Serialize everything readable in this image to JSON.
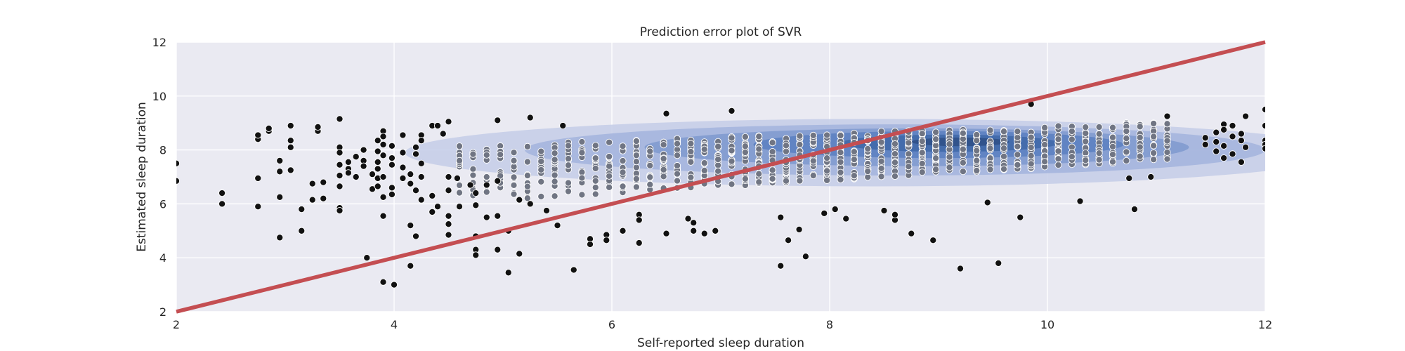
{
  "chart_data": {
    "type": "scatter",
    "title": "Prediction error plot of SVR",
    "xlabel": "Self-reported sleep duration",
    "ylabel": "Estimated sleep duration",
    "xlim": [
      2,
      12
    ],
    "ylim": [
      2,
      12
    ],
    "xticks": [
      2,
      4,
      6,
      8,
      10,
      12
    ],
    "yticks": [
      2,
      4,
      6,
      8,
      10,
      12
    ],
    "grid": true,
    "background_color": "#eaeaf2",
    "reference_line": {
      "from": [
        2,
        2
      ],
      "to": [
        12,
        12
      ],
      "color": "#c44e52"
    },
    "density_colors": [
      "#c4cde8",
      "#a3b4dd",
      "#7f99cf",
      "#5a7fc1",
      "#3f67a8",
      "#2e4f86"
    ],
    "density_contours": [
      {
        "cx": 8.4,
        "cy": 7.9,
        "rx": 4.3,
        "ry": 1.25
      },
      {
        "cx": 8.6,
        "cy": 8.0,
        "rx": 3.4,
        "ry": 0.95
      },
      {
        "cx": 8.8,
        "cy": 8.1,
        "rx": 2.5,
        "ry": 0.7
      },
      {
        "cx": 9.0,
        "cy": 8.2,
        "rx": 1.7,
        "ry": 0.5
      },
      {
        "cx": 9.1,
        "cy": 8.25,
        "rx": 1.0,
        "ry": 0.32
      },
      {
        "cx": 9.2,
        "cy": 8.3,
        "rx": 0.45,
        "ry": 0.16
      }
    ],
    "dense_point_color": "#707583",
    "outlier_point_color": "#111111",
    "outlier_points": [
      [
        2.0,
        7.5
      ],
      [
        2.0,
        6.85
      ],
      [
        2.42,
        6.4
      ],
      [
        2.42,
        6.0
      ],
      [
        2.75,
        8.4
      ],
      [
        2.75,
        8.55
      ],
      [
        2.75,
        6.95
      ],
      [
        2.75,
        5.9
      ],
      [
        2.85,
        8.7
      ],
      [
        2.85,
        8.8
      ],
      [
        2.95,
        7.6
      ],
      [
        2.95,
        7.2
      ],
      [
        2.95,
        6.25
      ],
      [
        2.95,
        4.75
      ],
      [
        3.05,
        8.9
      ],
      [
        3.05,
        8.35
      ],
      [
        3.05,
        8.1
      ],
      [
        3.05,
        7.25
      ],
      [
        3.15,
        5.8
      ],
      [
        3.15,
        5.0
      ],
      [
        3.25,
        6.75
      ],
      [
        3.25,
        6.15
      ],
      [
        3.3,
        8.7
      ],
      [
        3.3,
        8.85
      ],
      [
        3.35,
        6.8
      ],
      [
        3.35,
        6.2
      ],
      [
        3.5,
        9.15
      ],
      [
        3.5,
        8.1
      ],
      [
        3.5,
        7.9
      ],
      [
        3.5,
        7.45
      ],
      [
        3.5,
        7.05
      ],
      [
        3.5,
        6.65
      ],
      [
        3.5,
        5.85
      ],
      [
        3.5,
        5.75
      ],
      [
        3.58,
        7.55
      ],
      [
        3.58,
        7.3
      ],
      [
        3.58,
        7.15
      ],
      [
        3.65,
        7.0
      ],
      [
        3.65,
        7.75
      ],
      [
        3.72,
        7.6
      ],
      [
        3.72,
        7.4
      ],
      [
        3.72,
        8.0
      ],
      [
        3.75,
        4.0
      ],
      [
        3.8,
        7.1
      ],
      [
        3.8,
        6.55
      ],
      [
        3.85,
        8.35
      ],
      [
        3.85,
        7.95
      ],
      [
        3.85,
        7.55
      ],
      [
        3.85,
        7.3
      ],
      [
        3.85,
        6.95
      ],
      [
        3.85,
        6.65
      ],
      [
        3.9,
        8.7
      ],
      [
        3.9,
        8.5
      ],
      [
        3.9,
        8.2
      ],
      [
        3.9,
        7.8
      ],
      [
        3.9,
        7.0
      ],
      [
        3.9,
        6.25
      ],
      [
        3.9,
        5.55
      ],
      [
        3.9,
        3.1
      ],
      [
        3.98,
        8.15
      ],
      [
        3.98,
        7.7
      ],
      [
        3.98,
        7.45
      ],
      [
        3.98,
        6.6
      ],
      [
        3.98,
        6.35
      ],
      [
        4.0,
        3.0
      ],
      [
        4.08,
        8.55
      ],
      [
        4.08,
        7.9
      ],
      [
        4.08,
        7.35
      ],
      [
        4.08,
        6.95
      ],
      [
        4.15,
        7.1
      ],
      [
        4.15,
        6.75
      ],
      [
        4.15,
        5.2
      ],
      [
        4.15,
        3.7
      ],
      [
        4.2,
        8.1
      ],
      [
        4.2,
        7.85
      ],
      [
        4.2,
        6.5
      ],
      [
        4.2,
        4.8
      ],
      [
        4.25,
        8.55
      ],
      [
        4.25,
        8.35
      ],
      [
        4.25,
        7.5
      ],
      [
        4.25,
        7.0
      ],
      [
        4.25,
        6.15
      ],
      [
        4.35,
        8.9
      ],
      [
        4.35,
        6.3
      ],
      [
        4.35,
        5.7
      ],
      [
        4.4,
        8.9
      ],
      [
        4.4,
        5.9
      ],
      [
        4.45,
        8.6
      ],
      [
        4.5,
        9.05
      ],
      [
        4.5,
        7.0
      ],
      [
        4.5,
        6.5
      ],
      [
        4.5,
        5.55
      ],
      [
        4.5,
        5.25
      ],
      [
        4.5,
        4.85
      ],
      [
        4.58,
        6.95
      ],
      [
        4.6,
        5.9
      ],
      [
        4.7,
        6.7
      ],
      [
        4.75,
        6.4
      ],
      [
        4.75,
        5.95
      ],
      [
        4.75,
        4.8
      ],
      [
        4.75,
        4.3
      ],
      [
        4.75,
        4.1
      ],
      [
        4.85,
        6.7
      ],
      [
        4.85,
        5.5
      ],
      [
        4.95,
        9.1
      ],
      [
        4.95,
        6.85
      ],
      [
        4.95,
        5.55
      ],
      [
        4.95,
        4.3
      ],
      [
        5.05,
        5.0
      ],
      [
        5.05,
        3.45
      ],
      [
        5.15,
        6.15
      ],
      [
        5.15,
        4.15
      ],
      [
        5.25,
        9.2
      ],
      [
        5.25,
        6.0
      ],
      [
        5.4,
        5.75
      ],
      [
        5.5,
        5.2
      ],
      [
        5.55,
        8.9
      ],
      [
        5.65,
        3.55
      ],
      [
        5.8,
        4.7
      ],
      [
        5.8,
        4.5
      ],
      [
        5.95,
        4.85
      ],
      [
        5.95,
        4.65
      ],
      [
        6.1,
        5.0
      ],
      [
        6.25,
        5.6
      ],
      [
        6.25,
        5.4
      ],
      [
        6.25,
        4.55
      ],
      [
        6.5,
        9.35
      ],
      [
        6.5,
        4.9
      ],
      [
        6.7,
        5.45
      ],
      [
        6.75,
        5.3
      ],
      [
        6.75,
        5.0
      ],
      [
        6.85,
        4.9
      ],
      [
        6.95,
        5.0
      ],
      [
        7.1,
        9.45
      ],
      [
        7.55,
        3.7
      ],
      [
        7.55,
        5.5
      ],
      [
        7.62,
        4.65
      ],
      [
        7.72,
        5.05
      ],
      [
        7.78,
        4.05
      ],
      [
        7.95,
        5.65
      ],
      [
        8.05,
        5.8
      ],
      [
        8.15,
        5.45
      ],
      [
        8.5,
        5.75
      ],
      [
        8.6,
        5.4
      ],
      [
        8.6,
        5.6
      ],
      [
        8.75,
        4.9
      ],
      [
        8.95,
        4.65
      ],
      [
        9.2,
        3.6
      ],
      [
        9.45,
        6.05
      ],
      [
        9.55,
        3.8
      ],
      [
        9.75,
        5.5
      ],
      [
        9.85,
        9.7
      ],
      [
        10.3,
        6.1
      ],
      [
        10.75,
        6.95
      ],
      [
        10.8,
        5.8
      ],
      [
        10.95,
        7.0
      ],
      [
        11.1,
        9.25
      ],
      [
        11.45,
        8.2
      ],
      [
        11.45,
        8.45
      ],
      [
        11.55,
        8.65
      ],
      [
        11.55,
        8.3
      ],
      [
        11.55,
        7.95
      ],
      [
        11.62,
        8.95
      ],
      [
        11.62,
        8.75
      ],
      [
        11.62,
        8.15
      ],
      [
        11.62,
        7.7
      ],
      [
        11.7,
        8.9
      ],
      [
        11.7,
        8.5
      ],
      [
        11.7,
        7.85
      ],
      [
        11.78,
        8.6
      ],
      [
        11.78,
        8.35
      ],
      [
        11.78,
        7.55
      ],
      [
        11.82,
        9.25
      ],
      [
        11.82,
        8.1
      ],
      [
        12.0,
        9.5
      ],
      [
        12.0,
        8.9
      ],
      [
        12.0,
        8.35
      ],
      [
        12.0,
        8.2
      ],
      [
        12.0,
        8.05
      ]
    ]
  }
}
